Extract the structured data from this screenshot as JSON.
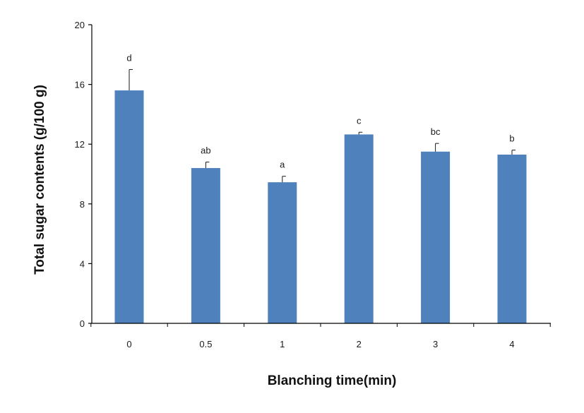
{
  "chart_data": {
    "type": "bar",
    "xlabel": "Blanching time(min)",
    "ylabel": "Total sugar contents (g/100 g)",
    "ylim": [
      0,
      20
    ],
    "yticks": [
      "0",
      "4",
      "8",
      "12",
      "16",
      "20"
    ],
    "categories": [
      "0",
      "0.5",
      "1",
      "2",
      "3",
      "4"
    ],
    "values": [
      15.6,
      10.4,
      9.45,
      12.65,
      11.5,
      11.3
    ],
    "errors": [
      1.4,
      0.4,
      0.4,
      0.15,
      0.55,
      0.3
    ],
    "significance": [
      "d",
      "ab",
      "a",
      "c",
      "bc",
      "b"
    ],
    "bar_color": "#4f81bd",
    "grid": false,
    "legend": "none"
  }
}
